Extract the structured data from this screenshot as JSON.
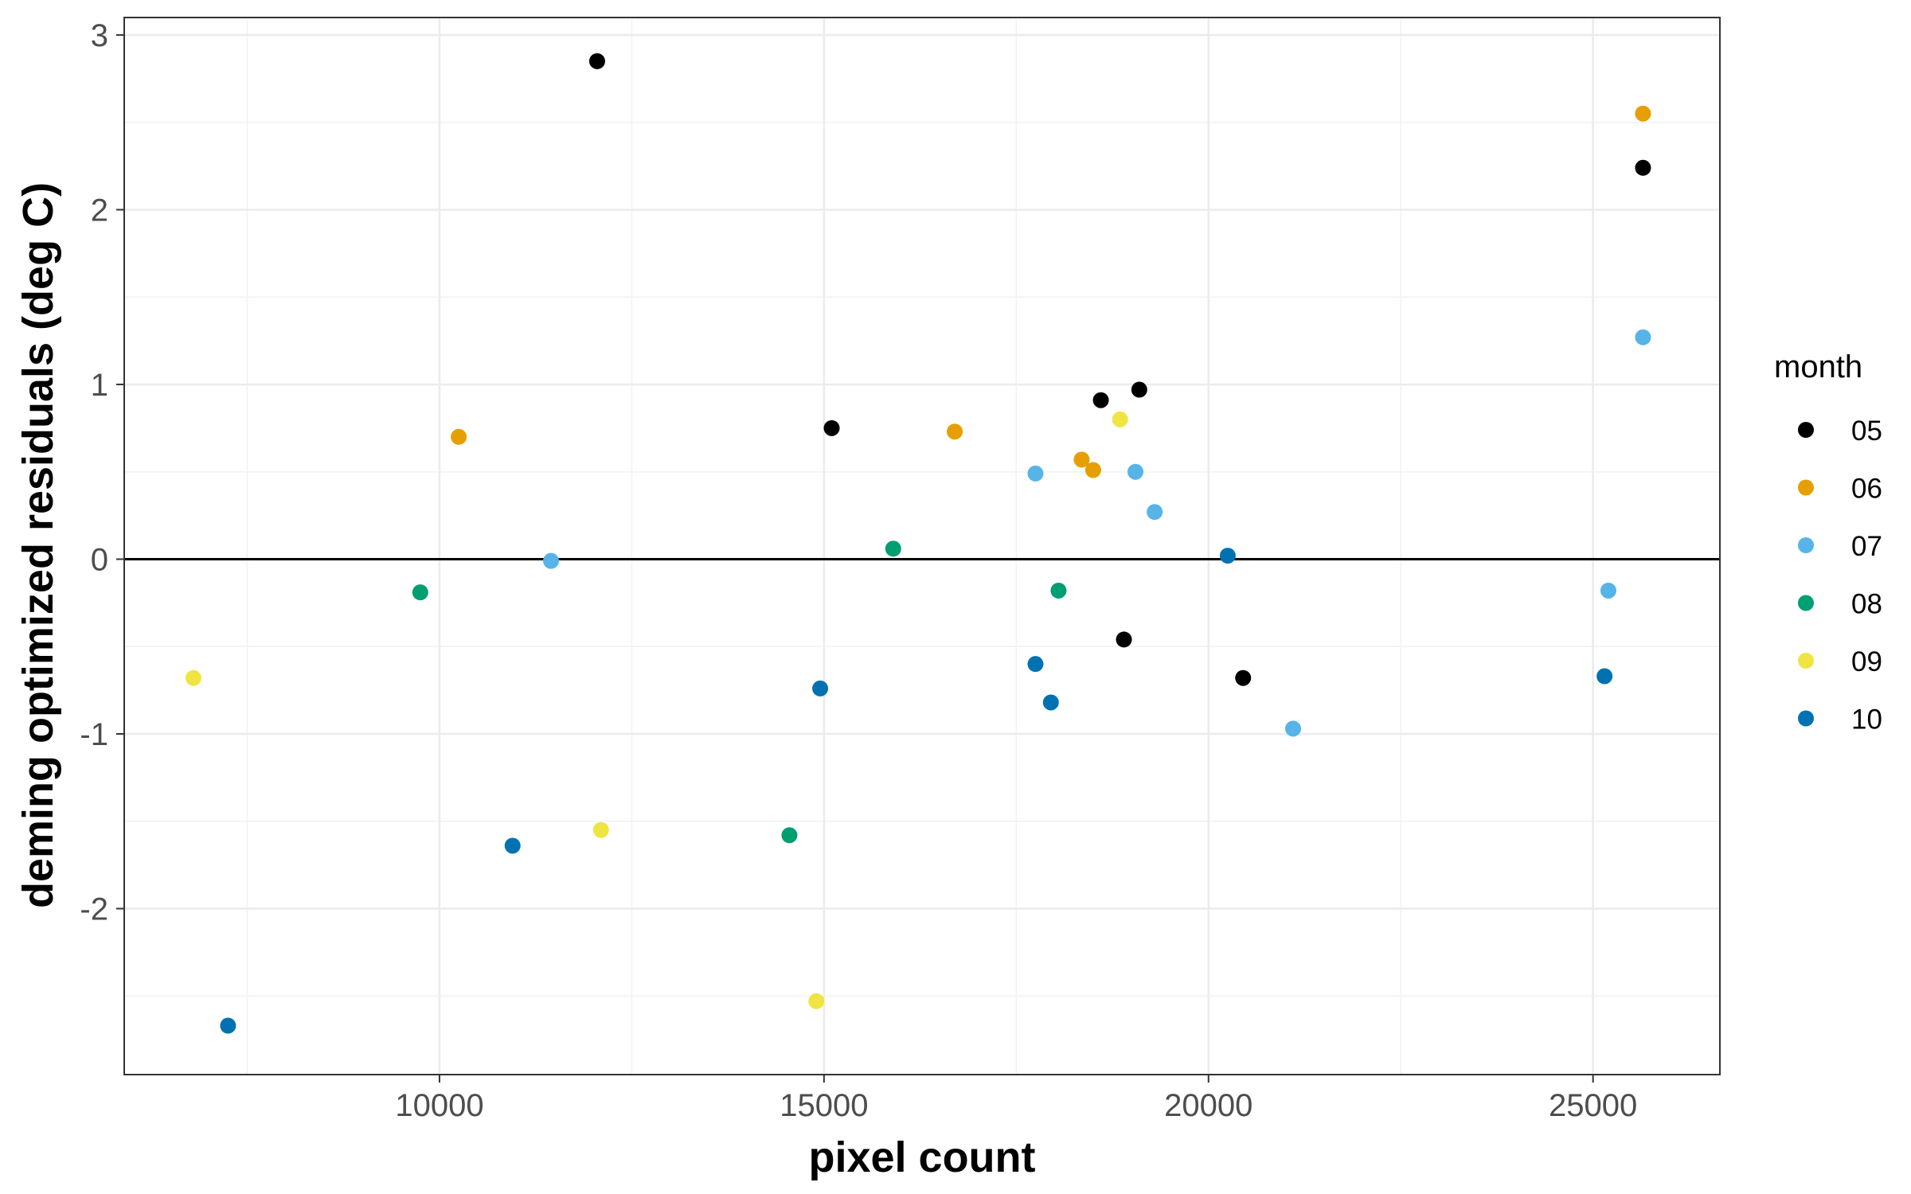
{
  "chart_data": {
    "type": "scatter",
    "title": "",
    "xlabel": "pixel count",
    "ylabel": "deming optimized residuals (deg C)",
    "xlim": [
      5900,
      26650
    ],
    "ylim": [
      -2.95,
      3.1
    ],
    "x_ticks": [
      10000,
      15000,
      20000,
      25000
    ],
    "y_ticks": [
      -2,
      -1,
      0,
      1,
      2,
      3
    ],
    "y_tick_labels": [
      "-2",
      "-1",
      "0",
      "1",
      "2",
      "3"
    ],
    "grid": true,
    "reference_line": {
      "y": 0
    },
    "legend": {
      "title": "month",
      "position": "right"
    },
    "series": [
      {
        "name": "05",
        "color": "#000000",
        "points": [
          {
            "x": 12050,
            "y": 2.85
          },
          {
            "x": 15100,
            "y": 0.75
          },
          {
            "x": 18600,
            "y": 0.91
          },
          {
            "x": 19100,
            "y": 0.97
          },
          {
            "x": 18900,
            "y": -0.46
          },
          {
            "x": 20450,
            "y": -0.68
          },
          {
            "x": 25650,
            "y": 2.24
          }
        ]
      },
      {
        "name": "06",
        "color": "#E69F00",
        "points": [
          {
            "x": 10250,
            "y": 0.7
          },
          {
            "x": 16700,
            "y": 0.73
          },
          {
            "x": 18350,
            "y": 0.57
          },
          {
            "x": 18500,
            "y": 0.51
          },
          {
            "x": 25650,
            "y": 2.55
          }
        ]
      },
      {
        "name": "07",
        "color": "#56B4E9",
        "points": [
          {
            "x": 11450,
            "y": -0.01
          },
          {
            "x": 17750,
            "y": 0.49
          },
          {
            "x": 19050,
            "y": 0.5
          },
          {
            "x": 19300,
            "y": 0.27
          },
          {
            "x": 21100,
            "y": -0.97
          },
          {
            "x": 25200,
            "y": -0.18
          },
          {
            "x": 25650,
            "y": 1.27
          }
        ]
      },
      {
        "name": "08",
        "color": "#009E73",
        "points": [
          {
            "x": 9750,
            "y": -0.19
          },
          {
            "x": 14550,
            "y": -1.58
          },
          {
            "x": 15900,
            "y": 0.06
          },
          {
            "x": 18050,
            "y": -0.18
          }
        ]
      },
      {
        "name": "09",
        "color": "#F0E442",
        "points": [
          {
            "x": 6800,
            "y": -0.68
          },
          {
            "x": 12100,
            "y": -1.55
          },
          {
            "x": 14900,
            "y": -2.53
          },
          {
            "x": 18850,
            "y": 0.8
          }
        ]
      },
      {
        "name": "10",
        "color": "#0072B2",
        "points": [
          {
            "x": 7250,
            "y": -2.67
          },
          {
            "x": 10950,
            "y": -1.64
          },
          {
            "x": 14950,
            "y": -0.74
          },
          {
            "x": 17750,
            "y": -0.6
          },
          {
            "x": 17950,
            "y": -0.82
          },
          {
            "x": 20250,
            "y": 0.02
          },
          {
            "x": 25150,
            "y": -0.67
          }
        ]
      }
    ]
  }
}
